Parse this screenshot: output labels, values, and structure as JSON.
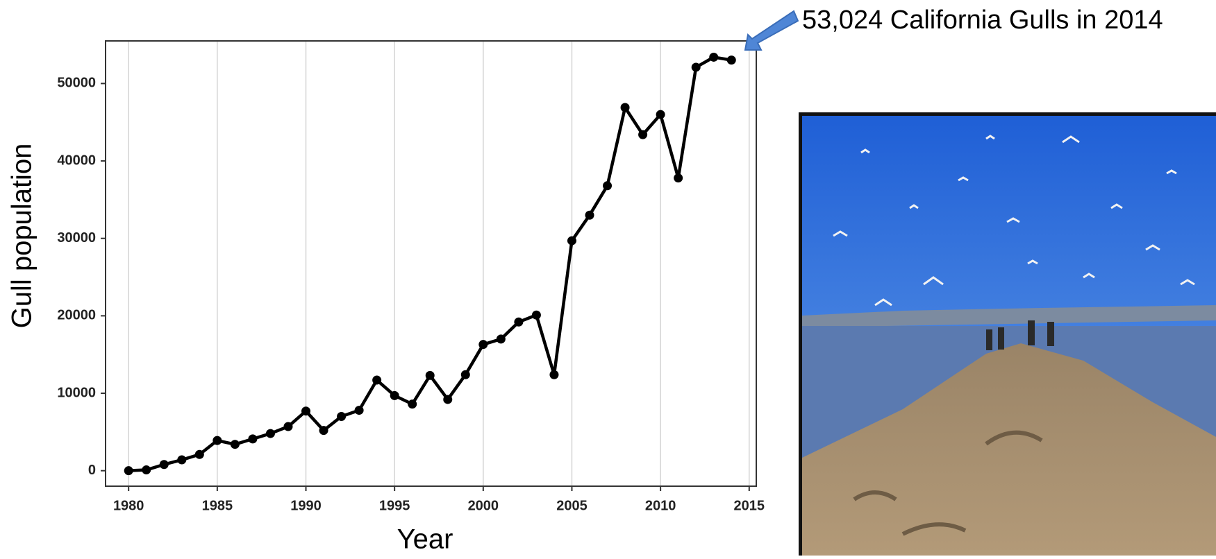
{
  "chart_data": {
    "type": "line",
    "xlabel": "Year",
    "ylabel": "Gull population",
    "annotation": "53,024 California Gulls in 2014",
    "x": [
      1980,
      1981,
      1982,
      1983,
      1984,
      1985,
      1986,
      1987,
      1988,
      1989,
      1990,
      1991,
      1992,
      1993,
      1994,
      1995,
      1996,
      1997,
      1998,
      1999,
      2000,
      2001,
      2002,
      2003,
      2004,
      2005,
      2006,
      2007,
      2008,
      2009,
      2010,
      2011,
      2012,
      2013,
      2014
    ],
    "values": [
      0,
      100,
      800,
      1400,
      2100,
      3900,
      3400,
      4100,
      4800,
      5700,
      7700,
      5200,
      7000,
      7800,
      11700,
      9700,
      8600,
      12300,
      9200,
      12400,
      16300,
      17000,
      19200,
      20100,
      12400,
      29700,
      33000,
      36800,
      46900,
      43400,
      46000,
      37800,
      52100,
      53400,
      53024
    ],
    "color": "#000000",
    "xlim": [
      1978.7,
      2015.4
    ],
    "xticks": [
      1980,
      1985,
      1990,
      1995,
      2000,
      2005,
      2010,
      2015
    ],
    "ylim": [
      -2000,
      55500
    ],
    "yticks": [
      0,
      10000,
      20000,
      30000,
      40000,
      50000
    ],
    "grid": "x"
  }
}
